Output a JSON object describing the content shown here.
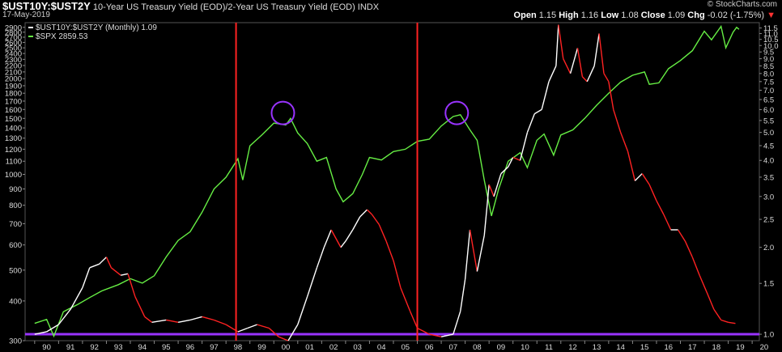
{
  "header": {
    "symbol": "$UST10Y:$UST2Y",
    "description": "10-Year US Treasury Yield (EOD)/2-Year US Treasury Yield (EOD)",
    "exchange": "INDX",
    "date": "17-May-2019",
    "brand": "© StockCharts.com",
    "ohlc": [
      {
        "k": "Open",
        "v": "1.15"
      },
      {
        "k": "High",
        "v": "1.16"
      },
      {
        "k": "Low",
        "v": "1.08"
      },
      {
        "k": "Close",
        "v": "1.09"
      },
      {
        "k": "Chg",
        "v": "-0.02 (-1.75%)"
      }
    ],
    "down_arrow": "▼"
  },
  "legend": [
    {
      "label": "$UST10Y:$UST2Y (Monthly) 1.09",
      "color": "#ffffff"
    },
    {
      "label": "$SPX 2859.53",
      "color": "#66ee44"
    }
  ],
  "chart_data": {
    "type": "line",
    "x_tick_labels": [
      "90",
      "91",
      "92",
      "93",
      "94",
      "95",
      "96",
      "97",
      "98",
      "99",
      "00",
      "01",
      "02",
      "03",
      "04",
      "05",
      "06",
      "07",
      "08",
      "09",
      "10",
      "11",
      "12",
      "13",
      "14",
      "15",
      "16",
      "17",
      "18",
      "19",
      "20"
    ],
    "left_axis": {
      "scale": "log",
      "ylim": [
        300,
        3000
      ],
      "tick_labels": [
        "300",
        "400",
        "500",
        "600",
        "700",
        "800",
        "900",
        "1000",
        "1100",
        "1200",
        "1300",
        "1400",
        "1500",
        "1600",
        "1700",
        "1800",
        "1900",
        "2000",
        "2100",
        "2200",
        "2300",
        "2400",
        "2500",
        "2600",
        "2700",
        "2800",
        "2900"
      ]
    },
    "right_axis": {
      "scale": "log",
      "ylim": [
        0.95,
        12
      ],
      "tick_labels": [
        "1.0",
        "1.5",
        "2.0",
        "2.5",
        "3.0",
        "3.5",
        "4.0",
        "4.5",
        "5.0",
        "5.5",
        "6.0",
        "6.5",
        "7.0",
        "7.5",
        "8.0",
        "8.5",
        "9.0",
        "9.5",
        "10.0",
        "10.5",
        "11.0",
        "11.5"
      ]
    },
    "series": [
      {
        "name": "$UST10Y:$UST2Y (Monthly)",
        "axis": "right",
        "color": "#ffffff",
        "decline_color": "#ff2222",
        "points": [
          [
            1990.0,
            1.0
          ],
          [
            1990.5,
            1.02
          ],
          [
            1991.0,
            1.08
          ],
          [
            1991.5,
            1.22
          ],
          [
            1992.0,
            1.45
          ],
          [
            1992.3,
            1.7
          ],
          [
            1992.7,
            1.75
          ],
          [
            1993.0,
            1.85
          ],
          [
            1993.2,
            1.7
          ],
          [
            1993.6,
            1.6
          ],
          [
            1993.9,
            1.62
          ],
          [
            1994.2,
            1.35
          ],
          [
            1994.6,
            1.15
          ],
          [
            1994.9,
            1.1
          ],
          [
            1995.5,
            1.12
          ],
          [
            1996.0,
            1.1
          ],
          [
            1996.5,
            1.12
          ],
          [
            1997.0,
            1.15
          ],
          [
            1997.5,
            1.12
          ],
          [
            1998.0,
            1.08
          ],
          [
            1998.5,
            1.02
          ],
          [
            1998.9,
            1.05
          ],
          [
            1999.3,
            1.08
          ],
          [
            1999.8,
            1.05
          ],
          [
            2000.2,
            0.98
          ],
          [
            2000.6,
            0.95
          ],
          [
            2001.0,
            1.08
          ],
          [
            2001.4,
            1.35
          ],
          [
            2001.8,
            1.7
          ],
          [
            2002.1,
            2.0
          ],
          [
            2002.4,
            2.3
          ],
          [
            2002.8,
            2.0
          ],
          [
            2003.0,
            2.1
          ],
          [
            2003.3,
            2.3
          ],
          [
            2003.6,
            2.55
          ],
          [
            2003.9,
            2.7
          ],
          [
            2004.1,
            2.6
          ],
          [
            2004.4,
            2.4
          ],
          [
            2004.7,
            2.1
          ],
          [
            2005.0,
            1.8
          ],
          [
            2005.3,
            1.45
          ],
          [
            2005.7,
            1.2
          ],
          [
            2006.0,
            1.05
          ],
          [
            2006.5,
            1.0
          ],
          [
            2007.0,
            0.98
          ],
          [
            2007.5,
            1.0
          ],
          [
            2007.8,
            1.2
          ],
          [
            2008.0,
            1.55
          ],
          [
            2008.2,
            2.3
          ],
          [
            2008.5,
            1.65
          ],
          [
            2008.8,
            2.2
          ],
          [
            2009.0,
            3.3
          ],
          [
            2009.2,
            3.0
          ],
          [
            2009.5,
            3.6
          ],
          [
            2009.8,
            3.8
          ],
          [
            2010.0,
            4.1
          ],
          [
            2010.3,
            4.0
          ],
          [
            2010.6,
            5.0
          ],
          [
            2010.9,
            5.8
          ],
          [
            2011.2,
            6.0
          ],
          [
            2011.5,
            7.5
          ],
          [
            2011.8,
            8.5
          ],
          [
            2011.9,
            11.8
          ],
          [
            2012.1,
            9.0
          ],
          [
            2012.4,
            8.0
          ],
          [
            2012.7,
            9.8
          ],
          [
            2012.9,
            7.8
          ],
          [
            2013.1,
            7.5
          ],
          [
            2013.4,
            8.5
          ],
          [
            2013.6,
            11.0
          ],
          [
            2013.8,
            8.0
          ],
          [
            2014.0,
            7.5
          ],
          [
            2014.2,
            6.0
          ],
          [
            2014.5,
            5.0
          ],
          [
            2014.8,
            4.3
          ],
          [
            2015.1,
            3.4
          ],
          [
            2015.4,
            3.6
          ],
          [
            2015.7,
            3.3
          ],
          [
            2016.0,
            2.9
          ],
          [
            2016.3,
            2.6
          ],
          [
            2016.6,
            2.3
          ],
          [
            2016.9,
            2.3
          ],
          [
            2017.2,
            2.1
          ],
          [
            2017.5,
            1.85
          ],
          [
            2017.8,
            1.6
          ],
          [
            2018.1,
            1.4
          ],
          [
            2018.4,
            1.22
          ],
          [
            2018.7,
            1.12
          ],
          [
            2019.0,
            1.1
          ],
          [
            2019.3,
            1.09
          ]
        ]
      },
      {
        "name": "$SPX",
        "axis": "left",
        "color": "#66ee44",
        "points": [
          [
            1990.0,
            340
          ],
          [
            1990.5,
            350
          ],
          [
            1990.8,
            310
          ],
          [
            1991.2,
            370
          ],
          [
            1991.8,
            390
          ],
          [
            1992.3,
            410
          ],
          [
            1992.8,
            430
          ],
          [
            1993.5,
            450
          ],
          [
            1994.0,
            470
          ],
          [
            1994.5,
            455
          ],
          [
            1995.0,
            480
          ],
          [
            1995.5,
            550
          ],
          [
            1996.0,
            620
          ],
          [
            1996.5,
            660
          ],
          [
            1997.0,
            760
          ],
          [
            1997.5,
            900
          ],
          [
            1998.0,
            980
          ],
          [
            1998.5,
            1120
          ],
          [
            1998.7,
            960
          ],
          [
            1999.0,
            1230
          ],
          [
            1999.5,
            1330
          ],
          [
            2000.0,
            1450
          ],
          [
            2000.5,
            1430
          ],
          [
            2000.7,
            1500
          ],
          [
            2001.0,
            1350
          ],
          [
            2001.4,
            1250
          ],
          [
            2001.8,
            1100
          ],
          [
            2002.2,
            1130
          ],
          [
            2002.6,
            900
          ],
          [
            2002.9,
            820
          ],
          [
            2003.3,
            870
          ],
          [
            2003.7,
            1000
          ],
          [
            2004.0,
            1130
          ],
          [
            2004.5,
            1110
          ],
          [
            2005.0,
            1180
          ],
          [
            2005.5,
            1200
          ],
          [
            2006.0,
            1270
          ],
          [
            2006.5,
            1290
          ],
          [
            2007.0,
            1420
          ],
          [
            2007.5,
            1520
          ],
          [
            2007.8,
            1540
          ],
          [
            2008.2,
            1380
          ],
          [
            2008.5,
            1280
          ],
          [
            2008.8,
            960
          ],
          [
            2009.1,
            740
          ],
          [
            2009.4,
            900
          ],
          [
            2009.8,
            1100
          ],
          [
            2010.3,
            1170
          ],
          [
            2010.6,
            1050
          ],
          [
            2011.0,
            1280
          ],
          [
            2011.3,
            1340
          ],
          [
            2011.7,
            1150
          ],
          [
            2012.0,
            1330
          ],
          [
            2012.5,
            1380
          ],
          [
            2013.0,
            1500
          ],
          [
            2013.5,
            1650
          ],
          [
            2014.0,
            1800
          ],
          [
            2014.5,
            1950
          ],
          [
            2015.0,
            2050
          ],
          [
            2015.5,
            2100
          ],
          [
            2015.7,
            1920
          ],
          [
            2016.1,
            1940
          ],
          [
            2016.5,
            2150
          ],
          [
            2017.0,
            2280
          ],
          [
            2017.5,
            2450
          ],
          [
            2018.0,
            2820
          ],
          [
            2018.3,
            2650
          ],
          [
            2018.7,
            2920
          ],
          [
            2018.9,
            2500
          ],
          [
            2019.2,
            2800
          ],
          [
            2019.35,
            2900
          ],
          [
            2019.45,
            2860
          ]
        ]
      }
    ],
    "annotations": {
      "vertical_lines_x": [
        1998.42,
        2006.0
      ],
      "horizontal_line_value": 1.0,
      "circle_centers": [
        [
          2000.38,
          1560
        ],
        [
          2007.65,
          1560
        ]
      ],
      "vertical_line_color": "#ff2222",
      "horizontal_line_color": "#9933ff",
      "circle_color": "#9933ff"
    }
  }
}
